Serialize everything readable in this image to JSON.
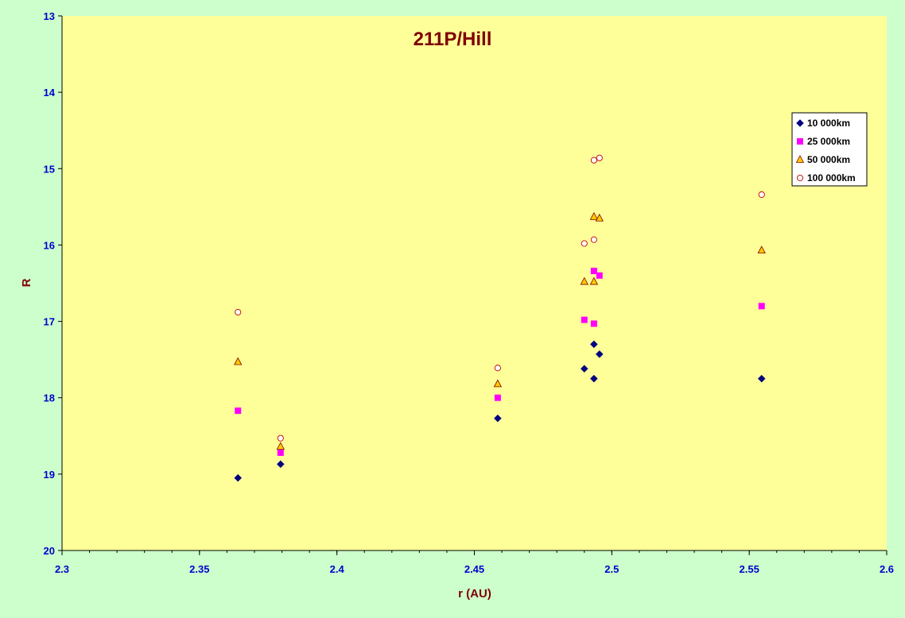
{
  "chart_data": {
    "type": "scatter",
    "title": "211P/Hill",
    "xlabel": "r (AU)",
    "ylabel": "R",
    "xlim": [
      2.3,
      2.6
    ],
    "ylim": [
      13,
      20
    ],
    "y_inverted": true,
    "x_ticks": [
      "2.3",
      "2.35",
      "2.4",
      "2.45",
      "2.5",
      "2.55",
      "2.6"
    ],
    "y_ticks": [
      "13",
      "14",
      "15",
      "16",
      "17",
      "18",
      "19",
      "20"
    ],
    "x_minor_step": 0.01,
    "grid": false,
    "legend_position": "top-right",
    "colors": {
      "page_background": "#CCFFCC",
      "plot_background": "#FFFF99",
      "tick_label": "#0000CC",
      "title": "#800000"
    },
    "series": [
      {
        "name": "10 000km",
        "marker": "diamond",
        "color": "#000080",
        "x": [
          2.364,
          2.3795,
          2.4585,
          2.49,
          2.4935,
          2.4935,
          2.4955,
          2.5545
        ],
        "y": [
          19.05,
          18.87,
          18.27,
          17.62,
          17.75,
          17.3,
          17.43,
          17.75
        ]
      },
      {
        "name": "25 000km",
        "marker": "square",
        "color": "#FF00FF",
        "x": [
          2.364,
          2.3795,
          2.4585,
          2.49,
          2.4935,
          2.4935,
          2.4955,
          2.5545
        ],
        "y": [
          18.17,
          18.72,
          18.0,
          16.98,
          17.03,
          16.34,
          16.4,
          16.8
        ]
      },
      {
        "name": "50 000km",
        "marker": "triangle",
        "color": "#FFCC00",
        "x": [
          2.364,
          2.3795,
          2.4585,
          2.49,
          2.4935,
          2.4935,
          2.4955,
          2.5545
        ],
        "y": [
          17.53,
          18.64,
          17.82,
          16.48,
          16.48,
          15.63,
          15.65,
          16.07
        ]
      },
      {
        "name": "100 000km",
        "marker": "circle",
        "color": "#FFFFFF",
        "x": [
          2.364,
          2.3795,
          2.4585,
          2.49,
          2.4935,
          2.4935,
          2.4955,
          2.5545
        ],
        "y": [
          16.88,
          18.53,
          17.61,
          15.98,
          15.93,
          14.89,
          14.86,
          15.34
        ]
      }
    ]
  }
}
